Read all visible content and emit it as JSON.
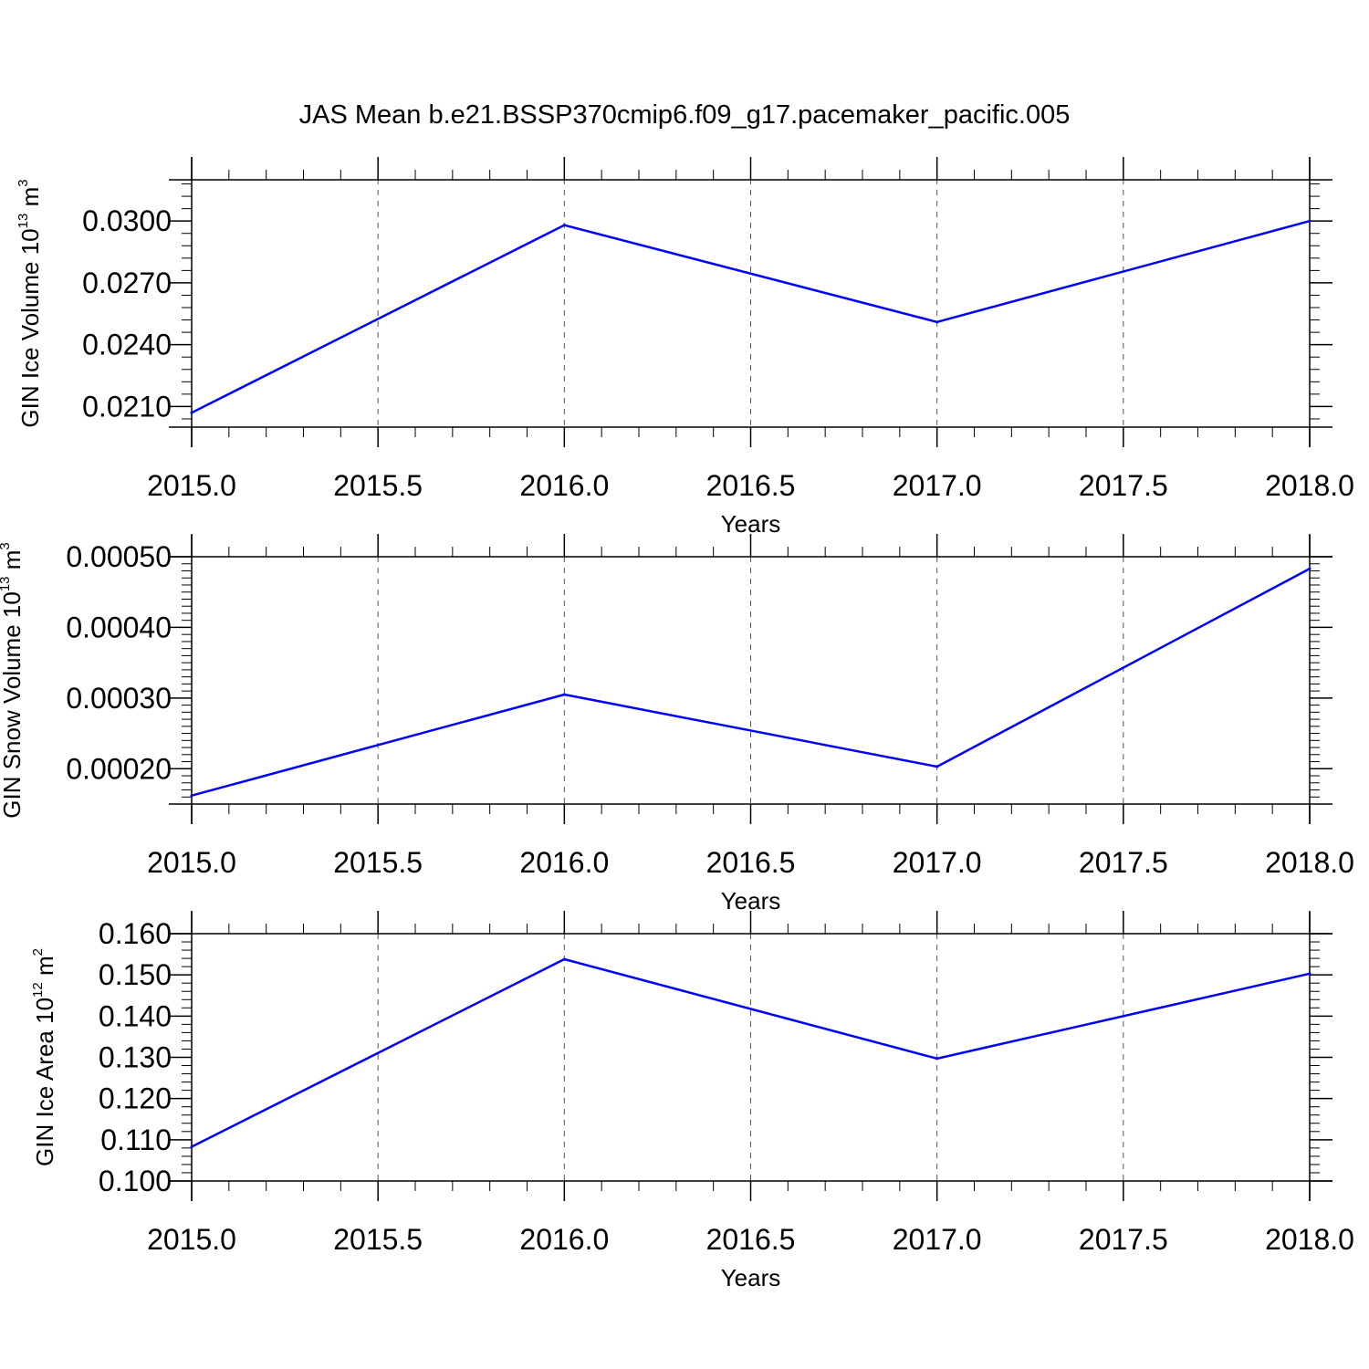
{
  "title": "JAS Mean b.e21.BSSP370cmip6.f09_g17.pacemaker_pacific.005",
  "colors": {
    "series": "#0000ff",
    "axis": "#000000",
    "grid": "#555555"
  },
  "chart_data": [
    {
      "type": "line",
      "xlabel": "Years",
      "ylabel": {
        "text": "GIN Ice Volume 10",
        "exp1": "13",
        "unit": " m",
        "exp2": "3"
      },
      "x": [
        2015,
        2016,
        2017,
        2018
      ],
      "series": [
        {
          "values": [
            0.0207,
            0.0298,
            0.0251,
            0.03
          ]
        }
      ],
      "xlim": [
        2015,
        2018
      ],
      "ylim": [
        0.02,
        0.032
      ],
      "xticks": [
        "2015.0",
        "2015.5",
        "2016.0",
        "2016.5",
        "2017.0",
        "2017.5",
        "2018.0"
      ],
      "yticks": [
        "0.0210",
        "0.0240",
        "0.0270",
        "0.0300"
      ],
      "grid": "vertical-dashed"
    },
    {
      "type": "line",
      "xlabel": "Years",
      "ylabel": {
        "text": "GIN Snow Volume 10",
        "exp1": "13",
        "unit": " m",
        "exp2": "3"
      },
      "x": [
        2015,
        2016,
        2017,
        2018
      ],
      "series": [
        {
          "values": [
            0.000162,
            0.000305,
            0.000203,
            0.000483
          ]
        }
      ],
      "xlim": [
        2015,
        2018
      ],
      "ylim": [
        0.00015,
        0.0005
      ],
      "xticks": [
        "2015.0",
        "2015.5",
        "2016.0",
        "2016.5",
        "2017.0",
        "2017.5",
        "2018.0"
      ],
      "yticks": [
        "0.00020",
        "0.00030",
        "0.00040",
        "0.00050"
      ],
      "grid": "vertical-dashed"
    },
    {
      "type": "line",
      "xlabel": "Years",
      "ylabel": {
        "text": "GIN Ice Area 10",
        "exp1": "12",
        "unit": " m",
        "exp2": "2"
      },
      "x": [
        2015,
        2016,
        2017,
        2018
      ],
      "series": [
        {
          "values": [
            0.1083,
            0.1538,
            0.1297,
            0.1503
          ]
        }
      ],
      "xlim": [
        2015,
        2018
      ],
      "ylim": [
        0.1,
        0.16
      ],
      "xticks": [
        "2015.0",
        "2015.5",
        "2016.0",
        "2016.5",
        "2017.0",
        "2017.5",
        "2018.0"
      ],
      "yticks": [
        "0.100",
        "0.110",
        "0.120",
        "0.130",
        "0.140",
        "0.150",
        "0.160"
      ],
      "grid": "vertical-dashed"
    }
  ]
}
